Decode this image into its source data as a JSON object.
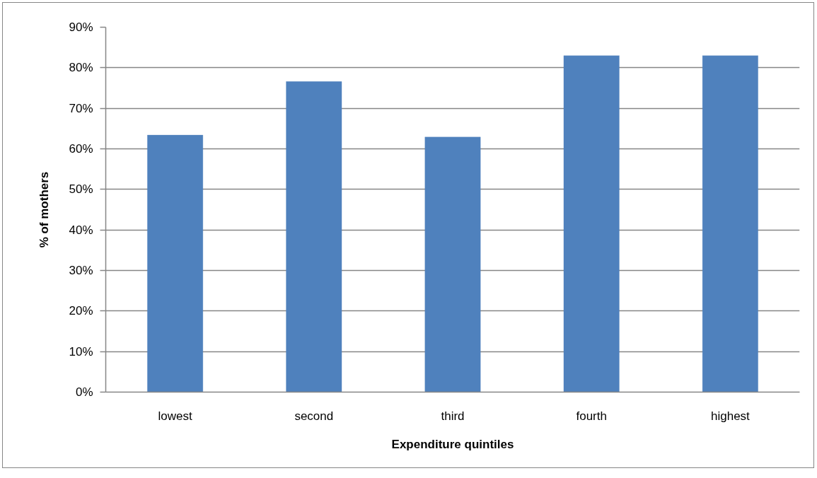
{
  "chart_data": {
    "type": "bar",
    "categories": [
      "lowest",
      "second",
      "third",
      "fourth",
      "highest"
    ],
    "values": [
      63.4,
      76.6,
      62.9,
      83.0,
      83.0
    ],
    "color": "#4f81bd",
    "xlabel": "Expenditure quintiles",
    "ylabel": "% of mothers",
    "ylim": [
      0,
      90
    ],
    "yticks": [
      {
        "value": 0,
        "label": "0%"
      },
      {
        "value": 10,
        "label": "10%"
      },
      {
        "value": 20,
        "label": "20%"
      },
      {
        "value": 30,
        "label": "30%"
      },
      {
        "value": 40,
        "label": "40%"
      },
      {
        "value": 50,
        "label": "50%"
      },
      {
        "value": 60,
        "label": "60%"
      },
      {
        "value": 70,
        "label": "70%"
      },
      {
        "value": 80,
        "label": "80%"
      },
      {
        "value": 90,
        "label": "90%"
      }
    ],
    "grid": "y"
  }
}
